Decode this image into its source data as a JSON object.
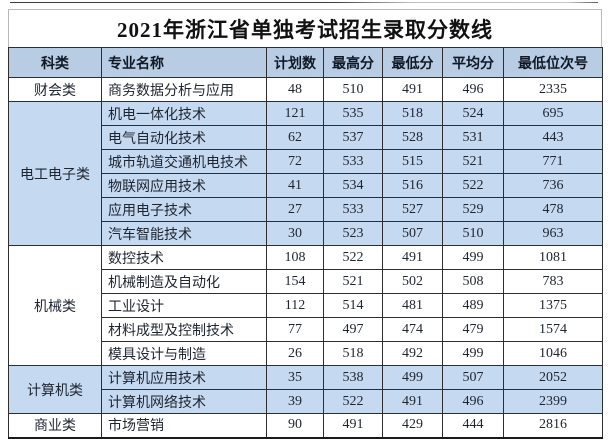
{
  "title": "2021年浙江省单独考试招生录取分数线",
  "columns": [
    "科类",
    "专业名称",
    "计划数",
    "最高分",
    "最低分",
    "平均分",
    "最低位次号"
  ],
  "groups": [
    {
      "category": "财会类",
      "shade": "white",
      "rows": [
        [
          "商务数据分析与应用",
          "48",
          "510",
          "491",
          "496",
          "2335"
        ]
      ]
    },
    {
      "category": "电工电子类",
      "shade": "blue",
      "rows": [
        [
          "机电一体化技术",
          "121",
          "535",
          "518",
          "524",
          "695"
        ],
        [
          "电气自动化技术",
          "62",
          "537",
          "528",
          "531",
          "443"
        ],
        [
          "城市轨道交通机电技术",
          "72",
          "533",
          "515",
          "521",
          "771"
        ],
        [
          "物联网应用技术",
          "41",
          "534",
          "516",
          "522",
          "736"
        ],
        [
          "应用电子技术",
          "27",
          "533",
          "527",
          "529",
          "478"
        ],
        [
          "汽车智能技术",
          "30",
          "523",
          "507",
          "510",
          "963"
        ]
      ]
    },
    {
      "category": "机械类",
      "shade": "white",
      "rows": [
        [
          "数控技术",
          "108",
          "522",
          "491",
          "499",
          "1081"
        ],
        [
          "机械制造及自动化",
          "154",
          "521",
          "502",
          "508",
          "783"
        ],
        [
          "工业设计",
          "112",
          "514",
          "481",
          "489",
          "1375"
        ],
        [
          "材料成型及控制技术",
          "77",
          "497",
          "474",
          "479",
          "1574"
        ],
        [
          "模具设计与制造",
          "26",
          "518",
          "492",
          "499",
          "1046"
        ]
      ]
    },
    {
      "category": "计算机类",
      "shade": "blue",
      "rows": [
        [
          "计算机应用技术",
          "35",
          "538",
          "499",
          "507",
          "2052"
        ],
        [
          "计算机网络技术",
          "39",
          "522",
          "491",
          "496",
          "2399"
        ]
      ]
    },
    {
      "category": "商业类",
      "shade": "white",
      "rows": [
        [
          "市场营销",
          "90",
          "491",
          "429",
          "444",
          "2816"
        ]
      ]
    }
  ],
  "colors": {
    "header_bg": "#b8cce4",
    "row_blue_bg": "#c5d9f1",
    "row_white_bg": "#ffffff",
    "border": "#2e2e2e"
  }
}
